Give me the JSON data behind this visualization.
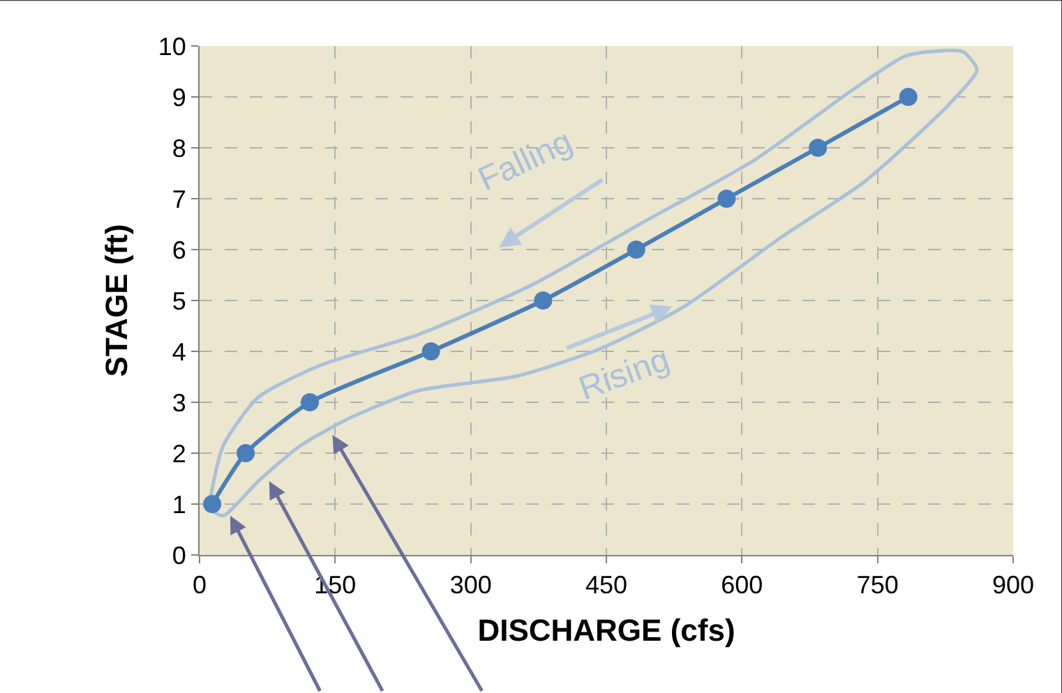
{
  "chart_data": {
    "type": "line",
    "xlabel": "DISCHARGE (cfs)",
    "ylabel": "STAGE (ft)",
    "xlim": [
      0,
      900
    ],
    "xticks": [
      0,
      150,
      300,
      450,
      600,
      750,
      900
    ],
    "ylim": [
      0,
      10
    ],
    "yticks": [
      0,
      1,
      2,
      3,
      4,
      5,
      6,
      7,
      8,
      9,
      10
    ],
    "grid": true,
    "line_style": "solid",
    "series": [
      {
        "color": "#a9c0da",
        "marker": "none",
        "x": [
          11,
          26,
          65,
          134,
          242,
          366,
          489,
          613,
          721,
          782,
          844,
          860,
          829,
          736,
          644,
          536,
          443,
          350,
          242,
          165,
          111,
          65,
          26,
          11
        ],
        "values": [
          1.04,
          2.14,
          3.1,
          3.73,
          4.33,
          5.29,
          6.52,
          7.75,
          9.12,
          9.81,
          9.89,
          9.53,
          8.85,
          7.34,
          6.25,
          4.88,
          4.05,
          3.51,
          3.23,
          2.68,
          2.14,
          1.45,
          0.77,
          0.9
        ]
      },
      {
        "color": "#4a7ebb",
        "marker": "circle",
        "x": [
          14,
          51,
          122,
          256,
          380,
          483,
          583,
          684,
          784
        ],
        "values": [
          1,
          2,
          3,
          4,
          5,
          6,
          7,
          8,
          9
        ]
      }
    ],
    "annotations": [
      "Falling",
      "Rising"
    ]
  }
}
